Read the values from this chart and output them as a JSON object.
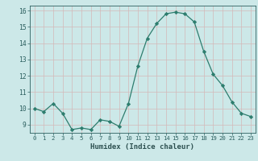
{
  "x": [
    0,
    1,
    2,
    3,
    4,
    5,
    6,
    7,
    8,
    9,
    10,
    11,
    12,
    13,
    14,
    15,
    16,
    17,
    18,
    19,
    20,
    21,
    22,
    23
  ],
  "y": [
    10.0,
    9.8,
    10.3,
    9.7,
    8.7,
    8.8,
    8.7,
    9.3,
    9.2,
    8.9,
    10.3,
    12.6,
    14.3,
    15.2,
    15.8,
    15.9,
    15.8,
    15.3,
    13.5,
    12.1,
    11.4,
    10.4,
    9.7,
    9.5
  ],
  "xlabel": "Humidex (Indice chaleur)",
  "ylim": [
    8.5,
    16.3
  ],
  "xlim": [
    -0.5,
    23.5
  ],
  "yticks": [
    9,
    10,
    11,
    12,
    13,
    14,
    15,
    16
  ],
  "xticks": [
    0,
    1,
    2,
    3,
    4,
    5,
    6,
    7,
    8,
    9,
    10,
    11,
    12,
    13,
    14,
    15,
    16,
    17,
    18,
    19,
    20,
    21,
    22,
    23
  ],
  "line_color": "#2d7d6e",
  "marker_color": "#2d7d6e",
  "bg_color": "#cce8e8",
  "grid_color": "#b0d8d8",
  "tick_label_color": "#2d6060",
  "xlabel_color": "#2d5050"
}
